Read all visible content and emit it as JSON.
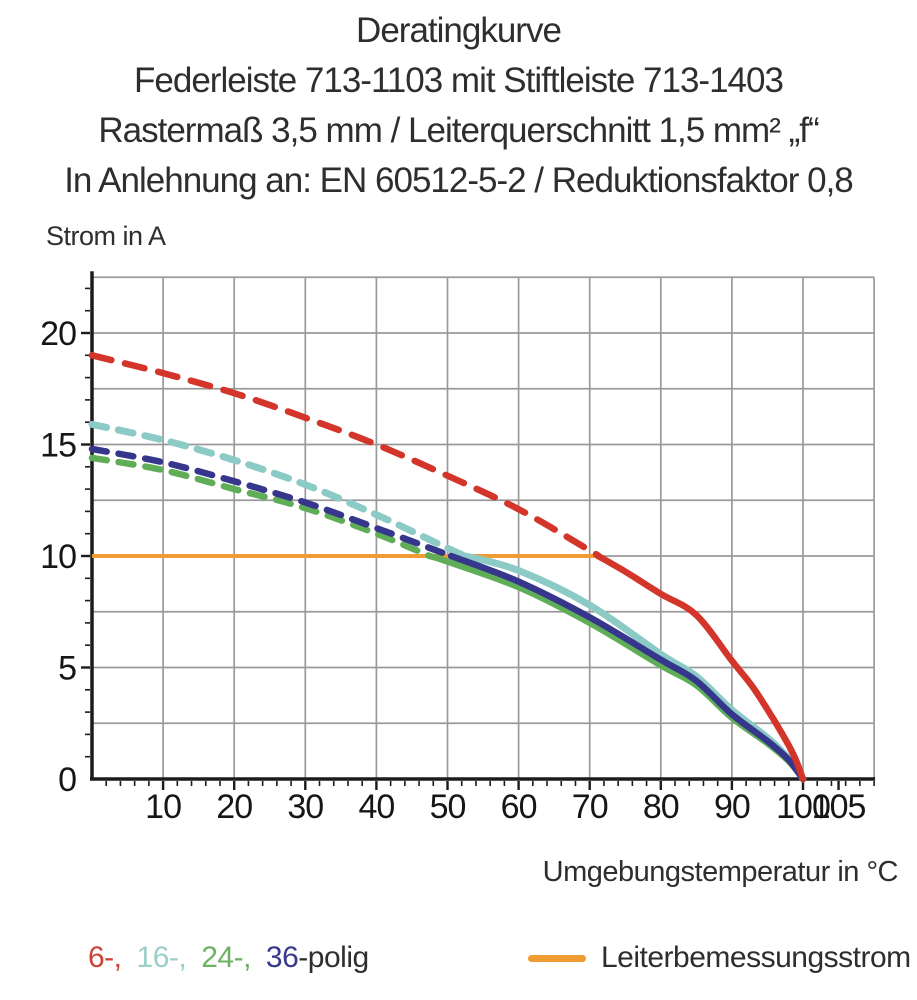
{
  "title": {
    "line1": "Deratingkurve",
    "line2": "Federleiste 713-1103 mit Stiftleiste 713-1403",
    "line3": "Rastermaß 3,5 mm / Leiterquerschnitt 1,5 mm² „f“",
    "line4": "In Anlehnung an: EN 60512-5-2 / Reduktionsfaktor 0,8"
  },
  "axes": {
    "y_title": "Strom in A",
    "x_title": "Umgebungstemperatur in °C"
  },
  "legend": {
    "pole_items": [
      {
        "label": "6-,",
        "color": "#cf4238"
      },
      {
        "label": "16-,",
        "color": "#9ccfc9"
      },
      {
        "label": "24-,",
        "color": "#6db263"
      },
      {
        "label": "36",
        "color": "#37388e"
      }
    ],
    "pole_suffix": "-polig",
    "rated_current_label": "Leiterbemessungsstrom",
    "rated_current_color": "#f09c32"
  },
  "chart_data": {
    "type": "line",
    "title": "Deratingkurve",
    "xlabel": "Umgebungstemperatur in °C",
    "ylabel": "Strom in A",
    "xlim": [
      0,
      110
    ],
    "ylim": [
      0,
      22.5
    ],
    "grid": true,
    "x_grid_step": 10,
    "y_grid_step": 2.5,
    "x_minor_tick_step": 2,
    "y_minor_tick_step": 1,
    "x_tick_labels": [
      10,
      20,
      30,
      40,
      50,
      60,
      70,
      80,
      90,
      100,
      105
    ],
    "y_tick_labels": [
      0,
      5,
      10,
      15,
      20
    ],
    "colors": {
      "grid": "#9a9a9a",
      "axis": "#1b1b1b",
      "tick_text": "#161616"
    },
    "legend_position": "bottom",
    "series": [
      {
        "name": "6-polig",
        "color": "#d4352b",
        "width": 6.5,
        "dash": "20 14",
        "dashed_until_x": 71.2,
        "draw_order": 4,
        "points": [
          [
            0,
            19.0
          ],
          [
            10,
            18.2
          ],
          [
            20,
            17.3
          ],
          [
            30,
            16.2
          ],
          [
            40,
            15.0
          ],
          [
            50,
            13.6
          ],
          [
            60,
            12.1
          ],
          [
            70,
            10.25
          ],
          [
            71.2,
            10.0
          ],
          [
            75,
            9.3
          ],
          [
            80,
            8.3
          ],
          [
            85,
            7.35
          ],
          [
            90,
            5.3
          ],
          [
            93,
            4.1
          ],
          [
            96,
            2.6
          ],
          [
            98,
            1.5
          ],
          [
            99,
            0.85
          ],
          [
            100,
            0
          ]
        ]
      },
      {
        "name": "16-polig",
        "color": "#8ccac5",
        "width": 7,
        "dash": "15 12",
        "dashed_until_x": 52.5,
        "draw_order": 2,
        "points": [
          [
            0,
            15.9
          ],
          [
            10,
            15.2
          ],
          [
            20,
            14.3
          ],
          [
            30,
            13.2
          ],
          [
            40,
            11.85
          ],
          [
            50,
            10.35
          ],
          [
            52.5,
            10.0
          ],
          [
            60,
            9.35
          ],
          [
            70,
            7.8
          ],
          [
            80,
            5.6
          ],
          [
            85,
            4.6
          ],
          [
            90,
            3.1
          ],
          [
            95,
            1.85
          ],
          [
            98,
            0.9
          ],
          [
            100,
            0
          ]
        ]
      },
      {
        "name": "24-polig",
        "color": "#5fae57",
        "width": 6.5,
        "dash": "15 12",
        "dashed_until_x": 47.5,
        "draw_order": 1,
        "points": [
          [
            0,
            14.4
          ],
          [
            10,
            13.85
          ],
          [
            20,
            13.0
          ],
          [
            30,
            12.15
          ],
          [
            40,
            11.0
          ],
          [
            47.5,
            10.0
          ],
          [
            50,
            9.75
          ],
          [
            60,
            8.6
          ],
          [
            70,
            7.0
          ],
          [
            80,
            5.1
          ],
          [
            85,
            4.2
          ],
          [
            90,
            2.75
          ],
          [
            95,
            1.6
          ],
          [
            98,
            0.8
          ],
          [
            100,
            0
          ]
        ]
      },
      {
        "name": "36-polig",
        "color": "#35368c",
        "width": 6.5,
        "dash": "15 12",
        "dashed_until_x": 50.5,
        "draw_order": 3,
        "points": [
          [
            0,
            14.8
          ],
          [
            10,
            14.2
          ],
          [
            20,
            13.35
          ],
          [
            30,
            12.4
          ],
          [
            40,
            11.25
          ],
          [
            50.5,
            10.0
          ],
          [
            60,
            8.85
          ],
          [
            70,
            7.25
          ],
          [
            80,
            5.35
          ],
          [
            85,
            4.4
          ],
          [
            90,
            2.9
          ],
          [
            95,
            1.7
          ],
          [
            98,
            0.85
          ],
          [
            100,
            0
          ]
        ]
      }
    ],
    "reference_line": {
      "name": "Leiterbemessungsstrom",
      "y": 10,
      "x_start": 0,
      "x_end": 71.2,
      "color": "#f09c32",
      "width": 4
    }
  }
}
